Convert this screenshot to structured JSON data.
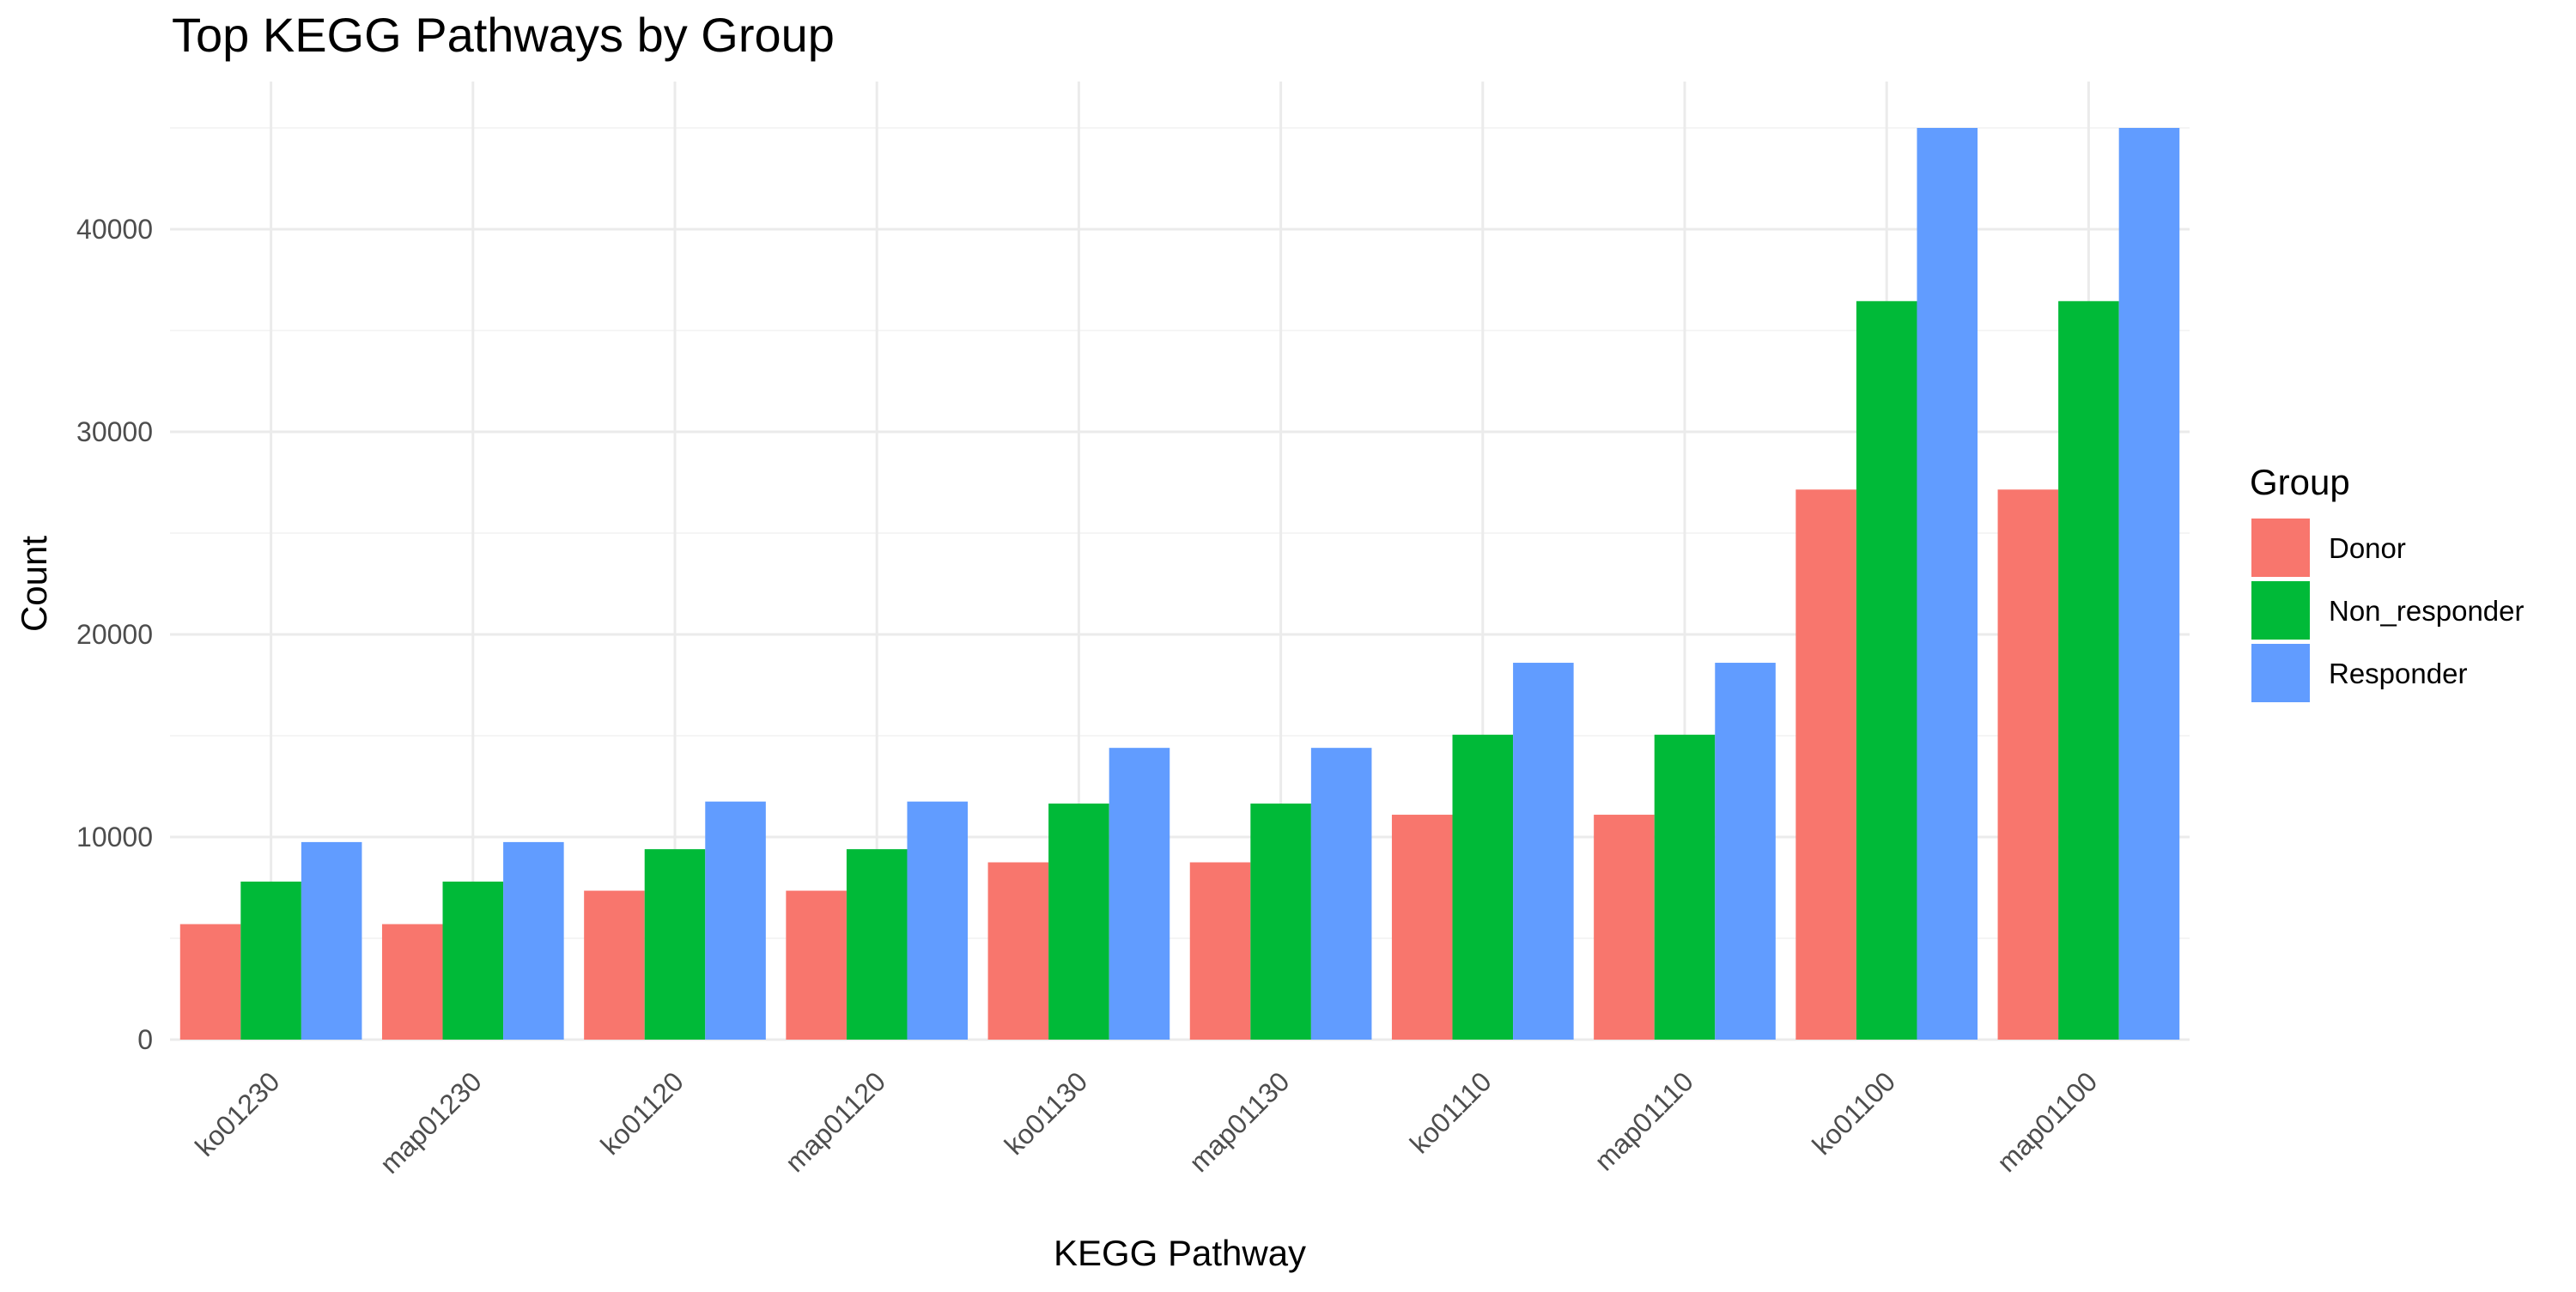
{
  "colors": {
    "Donor": "#F8766D",
    "Non_responder": "#00BA38",
    "Responder": "#619CFF",
    "grid_major": "#ebebeb",
    "grid_minor": "#f5f5f5",
    "background": "#ffffff"
  },
  "chart_data": {
    "type": "bar",
    "title": "Top KEGG Pathways by Group",
    "xlabel": "KEGG Pathway",
    "ylabel": "Count",
    "categories": [
      "ko01230",
      "map01230",
      "ko01120",
      "map01120",
      "ko01130",
      "map01130",
      "ko01110",
      "map01110",
      "ko01100",
      "map01100"
    ],
    "series": [
      {
        "name": "Donor",
        "values": [
          5700,
          5700,
          7350,
          7350,
          8750,
          8750,
          11100,
          11100,
          27150,
          27150
        ]
      },
      {
        "name": "Non_responder",
        "values": [
          7800,
          7800,
          9400,
          9400,
          11650,
          11650,
          15050,
          15050,
          36450,
          36450
        ]
      },
      {
        "name": "Responder",
        "values": [
          9750,
          9750,
          11750,
          11750,
          14400,
          14400,
          18600,
          18600,
          45000,
          45000
        ]
      }
    ],
    "ylim": [
      0,
      45000
    ],
    "yticks": [
      0,
      10000,
      20000,
      30000,
      40000
    ],
    "ytick_labels": [
      "0",
      "10000",
      "20000",
      "30000",
      "40000"
    ],
    "grid": true,
    "legend": {
      "title": "Group",
      "position": "right",
      "entries": [
        "Donor",
        "Non_responder",
        "Responder"
      ]
    }
  }
}
